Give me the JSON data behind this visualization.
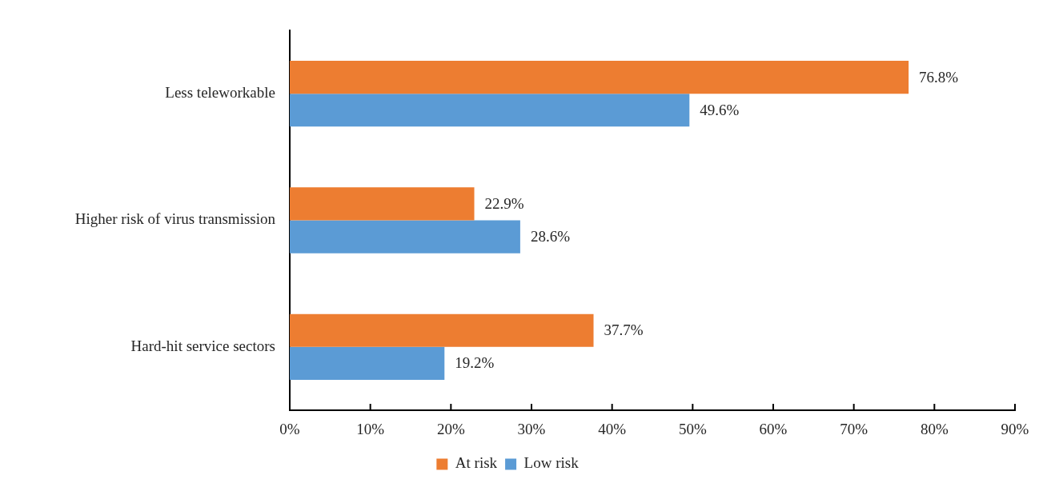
{
  "chart_data": {
    "type": "bar",
    "orientation": "horizontal",
    "categories": [
      "Less teleworkable",
      "Higher risk of virus transmission",
      "Hard-hit service sectors"
    ],
    "series": [
      {
        "name": "At risk",
        "color": "#ed7d31",
        "values": [
          76.8,
          22.9,
          37.7
        ],
        "value_labels": [
          "76.8%",
          "22.9%",
          "37.7%"
        ]
      },
      {
        "name": "Low risk",
        "color": "#5b9bd5",
        "values": [
          49.6,
          28.6,
          19.2
        ],
        "value_labels": [
          "49.6%",
          "28.6%",
          "19.2%"
        ]
      }
    ],
    "xlim": [
      0,
      90
    ],
    "xticks": [
      {
        "value": 0,
        "label": "0%"
      },
      {
        "value": 10,
        "label": "10%"
      },
      {
        "value": 20,
        "label": "20%"
      },
      {
        "value": 30,
        "label": "30%"
      },
      {
        "value": 40,
        "label": "40%"
      },
      {
        "value": 50,
        "label": "50%"
      },
      {
        "value": 60,
        "label": "60%"
      },
      {
        "value": 70,
        "label": "70%"
      },
      {
        "value": 80,
        "label": "80%"
      },
      {
        "value": 90,
        "label": "90%"
      }
    ],
    "legend": "bottom"
  }
}
